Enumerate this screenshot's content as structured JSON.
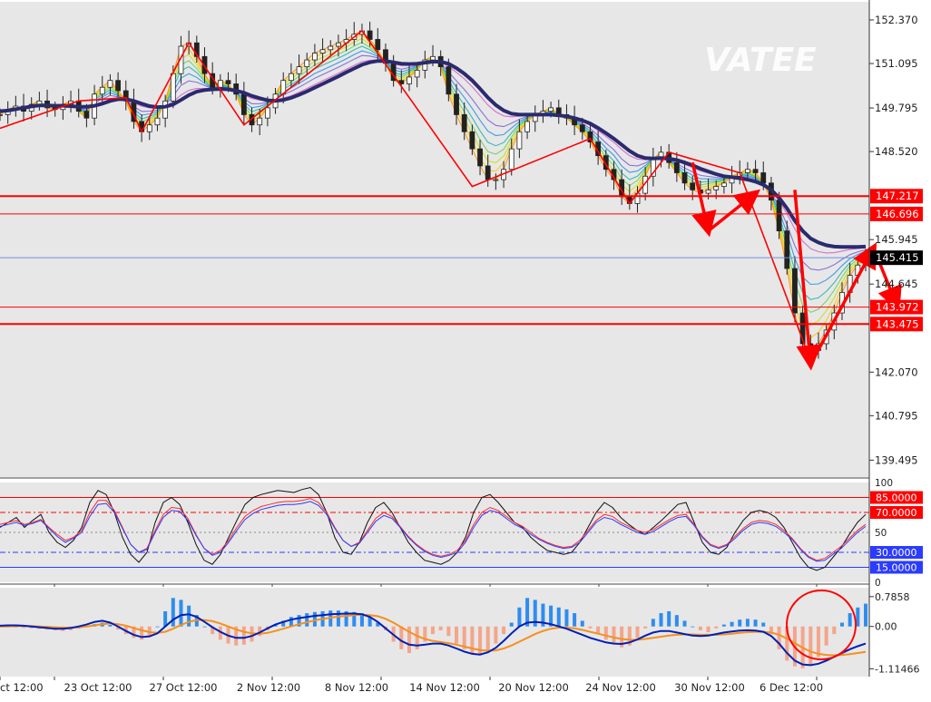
{
  "watermark": "VATEE",
  "colors": {
    "background": "#ffffff",
    "plot_bg": "#e7e7e7",
    "bull_candle": "#333333",
    "bear_candle": "#333333",
    "red_line": "#ff0000",
    "blue_line": "#6a8fe0",
    "navy_ma": "#2a2a6e",
    "macd_up": "#2d8df0",
    "macd_down": "#f4a58a",
    "macd_line": "#001fb4",
    "signal_line": "#f5901f",
    "stoch_main": "#111111",
    "stoch_k": "#ff2a2a",
    "stoch_d": "#2b3bff"
  },
  "chart_data": [
    {
      "type": "candlestick",
      "ylim": [
        139.0,
        152.9
      ],
      "y_ticks": [
        "152.370",
        "151.095",
        "149.795",
        "148.520",
        "145.945",
        "144.645",
        "142.070",
        "140.795",
        "139.495"
      ],
      "x_ticks": [
        "ct 12:00",
        "23 Oct 12:00",
        "27 Oct 12:00",
        "2 Nov 12:00",
        "8 Nov 12:00",
        "14 Nov 12:00",
        "20 Nov 12:00",
        "24 Nov 12:00",
        "30 Nov 12:00",
        "6 Dec 12:00"
      ],
      "horizontal_levels": [
        {
          "label": "147.217",
          "value": 147.217,
          "kind": "red"
        },
        {
          "label": "146.696",
          "value": 146.696,
          "kind": "red"
        },
        {
          "label": "145.415",
          "value": 145.415,
          "kind": "current"
        },
        {
          "label": "143.972",
          "value": 143.972,
          "kind": "red"
        },
        {
          "label": "143.475",
          "value": 143.475,
          "kind": "red"
        }
      ],
      "price_path": [
        149.6,
        149.75,
        149.85,
        149.7,
        149.9,
        150.0,
        149.8,
        149.75,
        149.9,
        150.0,
        149.7,
        149.5,
        150.2,
        150.4,
        150.6,
        150.3,
        150.0,
        149.4,
        149.1,
        149.3,
        149.5,
        150.0,
        150.8,
        151.6,
        151.7,
        151.3,
        150.8,
        150.4,
        150.6,
        150.5,
        150.2,
        149.6,
        149.3,
        149.5,
        149.8,
        150.2,
        150.6,
        150.8,
        151.0,
        151.2,
        151.4,
        151.5,
        151.6,
        151.7,
        151.8,
        151.95,
        152.05,
        151.8,
        151.5,
        151.1,
        150.6,
        150.5,
        150.7,
        150.9,
        151.2,
        151.3,
        151.0,
        150.2,
        149.6,
        149.1,
        148.6,
        148.1,
        147.7,
        147.7,
        148.0,
        148.6,
        149.1,
        149.4,
        149.6,
        149.7,
        149.8,
        149.6,
        149.5,
        149.3,
        149.1,
        148.8,
        148.4,
        148.0,
        147.7,
        147.2,
        147.0,
        147.3,
        147.8,
        148.3,
        148.5,
        148.2,
        147.9,
        147.6,
        147.4,
        147.3,
        147.4,
        147.5,
        147.6,
        147.8,
        147.9,
        148.0,
        147.9,
        147.6,
        147.1,
        146.2,
        145.1,
        143.8,
        142.9,
        142.7,
        142.9,
        143.3,
        143.8,
        144.4,
        144.9,
        145.2,
        145.4
      ],
      "ma_path": [
        149.7,
        149.72,
        149.76,
        149.8,
        149.84,
        149.87,
        149.87,
        149.86,
        149.86,
        149.85,
        149.83,
        149.83,
        149.86,
        149.92,
        150.0,
        150.05,
        150.05,
        150.0,
        149.92,
        149.85,
        149.82,
        149.83,
        149.9,
        150.03,
        150.17,
        150.27,
        150.32,
        150.34,
        150.35,
        150.34,
        150.3,
        150.24,
        150.15,
        150.08,
        150.02,
        150.0,
        150.03,
        150.09,
        150.18,
        150.28,
        150.39,
        150.5,
        150.61,
        150.72,
        150.84,
        150.95,
        151.06,
        151.13,
        151.17,
        151.17,
        151.13,
        151.09,
        151.08,
        151.09,
        151.12,
        151.15,
        151.15,
        151.09,
        150.96,
        150.8,
        150.6,
        150.36,
        150.1,
        149.88,
        149.72,
        149.63,
        149.6,
        149.6,
        149.6,
        149.6,
        149.6,
        149.58,
        149.55,
        149.5,
        149.43,
        149.34,
        149.21,
        149.06,
        148.9,
        148.72,
        148.54,
        148.4,
        148.33,
        148.32,
        148.33,
        148.31,
        148.27,
        148.2,
        148.12,
        148.02,
        147.94,
        147.86,
        147.8,
        147.77,
        147.74,
        147.7,
        147.64,
        147.55,
        147.4,
        147.17,
        146.86,
        146.5,
        146.2,
        145.98,
        145.86,
        145.78,
        145.74,
        145.73,
        145.73,
        145.73,
        145.74
      ],
      "fan_offsets": [
        0.0,
        0.25,
        0.5,
        0.75,
        1.0,
        1.3,
        1.6,
        2.0
      ],
      "fan_colors": [
        "#ff8c00",
        "#ffc300",
        "#c8e000",
        "#6ad04a",
        "#19b4a8",
        "#1f8fe0",
        "#7b5cd6",
        "#d05acc"
      ],
      "zigzag": [
        [
          0,
          149.2
        ],
        [
          10,
          150.0
        ],
        [
          16,
          150.1
        ],
        [
          18,
          149.1
        ],
        [
          24,
          151.7
        ],
        [
          31,
          149.3
        ],
        [
          46,
          152.05
        ],
        [
          60,
          147.5
        ],
        [
          75,
          148.9
        ],
        [
          80,
          147.0
        ],
        [
          85,
          148.5
        ],
        [
          94,
          147.9
        ],
        [
          103,
          142.4
        ]
      ],
      "arrows": [
        {
          "from": [
            88,
            148.2
          ],
          "to": [
            90,
            146.2
          ]
        },
        {
          "from": [
            90,
            146.2
          ],
          "to": [
            96,
            147.3
          ]
        },
        {
          "from": [
            101,
            147.4
          ],
          "to": [
            103,
            142.3
          ]
        },
        {
          "from": [
            103,
            142.3
          ],
          "to": [
            111,
            145.7
          ]
        },
        {
          "from": [
            111,
            145.7
          ],
          "to": [
            114,
            144.0
          ]
        }
      ]
    },
    {
      "type": "line",
      "name": "stochastic",
      "ylim": [
        0,
        100
      ],
      "y_ticks": [
        "100",
        "85.0000",
        "70.0000",
        "50",
        "30.0000",
        "15.0000",
        "0"
      ],
      "levels": [
        {
          "label": "85.0000",
          "value": 85,
          "style": "solid-red"
        },
        {
          "label": "70.0000",
          "value": 70,
          "style": "dash-red"
        },
        {
          "label": "50",
          "value": 50,
          "style": "dot-gray"
        },
        {
          "label": "30.0000",
          "value": 30,
          "style": "dash-blue"
        },
        {
          "label": "15.0000",
          "value": 15,
          "style": "solid-blue"
        }
      ],
      "series": [
        {
          "name": "main",
          "values": [
            55,
            60,
            65,
            55,
            62,
            68,
            50,
            40,
            35,
            42,
            55,
            80,
            92,
            88,
            70,
            45,
            28,
            20,
            30,
            60,
            80,
            85,
            78,
            60,
            38,
            22,
            18,
            28,
            45,
            62,
            78,
            85,
            88,
            90,
            92,
            91,
            90,
            93,
            95,
            88,
            70,
            45,
            30,
            28,
            40,
            60,
            75,
            80,
            70,
            55,
            40,
            30,
            22,
            20,
            18,
            22,
            30,
            45,
            70,
            85,
            88,
            80,
            70,
            60,
            55,
            45,
            38,
            32,
            30,
            28,
            30,
            40,
            55,
            70,
            80,
            75,
            65,
            58,
            52,
            48,
            55,
            62,
            70,
            78,
            80,
            60,
            40,
            30,
            28,
            35,
            50,
            62,
            70,
            72,
            70,
            65,
            55,
            40,
            25,
            15,
            12,
            15,
            25,
            35,
            48,
            60,
            68
          ]
        },
        {
          "name": "k",
          "values": [
            58,
            60,
            62,
            58,
            60,
            63,
            55,
            48,
            42,
            45,
            52,
            70,
            82,
            82,
            72,
            55,
            38,
            30,
            34,
            52,
            68,
            75,
            74,
            64,
            48,
            34,
            28,
            32,
            42,
            55,
            66,
            72,
            76,
            78,
            80,
            81,
            81,
            82,
            84,
            80,
            70,
            55,
            42,
            36,
            40,
            52,
            64,
            70,
            66,
            56,
            46,
            38,
            32,
            28,
            26,
            28,
            32,
            42,
            58,
            70,
            75,
            72,
            66,
            60,
            56,
            50,
            44,
            40,
            37,
            35,
            36,
            42,
            52,
            62,
            68,
            66,
            60,
            56,
            52,
            50,
            53,
            58,
            63,
            67,
            68,
            58,
            46,
            38,
            35,
            38,
            46,
            54,
            60,
            62,
            61,
            58,
            52,
            44,
            34,
            26,
            22,
            24,
            30,
            36,
            44,
            52,
            58
          ]
        },
        {
          "name": "d",
          "values": [
            56,
            58,
            60,
            57,
            59,
            62,
            54,
            46,
            40,
            44,
            50,
            66,
            78,
            79,
            70,
            54,
            38,
            30,
            33,
            50,
            65,
            72,
            71,
            62,
            47,
            34,
            27,
            30,
            40,
            52,
            63,
            69,
            73,
            75,
            77,
            78,
            78,
            79,
            81,
            77,
            68,
            54,
            42,
            36,
            39,
            50,
            61,
            67,
            64,
            55,
            45,
            37,
            31,
            27,
            25,
            27,
            30,
            40,
            55,
            67,
            72,
            70,
            64,
            58,
            54,
            48,
            43,
            39,
            36,
            34,
            35,
            40,
            50,
            60,
            65,
            63,
            58,
            54,
            50,
            48,
            51,
            56,
            61,
            65,
            66,
            57,
            45,
            37,
            34,
            37,
            44,
            52,
            58,
            60,
            59,
            56,
            50,
            43,
            33,
            25,
            21,
            22,
            28,
            34,
            42,
            50,
            56
          ]
        }
      ]
    },
    {
      "type": "bar",
      "name": "macd",
      "ylim": [
        -1.32,
        1.02
      ],
      "y_ticks": [
        "0.7858",
        "0.00",
        "-1.11466"
      ],
      "histogram": [
        -0.02,
        -0.02,
        -0.03,
        -0.04,
        -0.05,
        -0.06,
        -0.08,
        -0.1,
        -0.12,
        -0.1,
        -0.06,
        0.0,
        0.06,
        0.1,
        0.04,
        -0.08,
        -0.2,
        -0.3,
        -0.35,
        -0.25,
        0.0,
        0.4,
        0.75,
        0.7,
        0.55,
        0.3,
        0.0,
        -0.2,
        -0.35,
        -0.45,
        -0.5,
        -0.48,
        -0.4,
        -0.25,
        -0.1,
        0.05,
        0.15,
        0.25,
        0.3,
        0.35,
        0.38,
        0.4,
        0.42,
        0.42,
        0.4,
        0.38,
        0.35,
        0.25,
        0.1,
        -0.1,
        -0.4,
        -0.6,
        -0.7,
        -0.6,
        -0.4,
        -0.2,
        -0.1,
        -0.25,
        -0.45,
        -0.6,
        -0.7,
        -0.75,
        -0.65,
        -0.45,
        -0.2,
        0.1,
        0.5,
        0.75,
        0.7,
        0.6,
        0.55,
        0.5,
        0.45,
        0.35,
        0.15,
        -0.05,
        -0.2,
        -0.35,
        -0.45,
        -0.55,
        -0.5,
        -0.3,
        -0.05,
        0.2,
        0.35,
        0.4,
        0.3,
        0.15,
        0.0,
        -0.1,
        -0.15,
        -0.05,
        0.05,
        0.12,
        0.18,
        0.2,
        0.18,
        0.1,
        -0.2,
        -0.6,
        -0.9,
        -1.05,
        -1.1,
        -1.0,
        -0.8,
        -0.5,
        -0.2,
        0.1,
        0.35,
        0.5,
        0.6
      ],
      "macd_line": [
        0.02,
        0.03,
        0.03,
        0.02,
        0.0,
        -0.02,
        -0.04,
        -0.06,
        -0.06,
        -0.04,
        0.0,
        0.05,
        0.12,
        0.15,
        0.1,
        0.0,
        -0.12,
        -0.22,
        -0.28,
        -0.26,
        -0.18,
        0.0,
        0.18,
        0.3,
        0.32,
        0.25,
        0.12,
        -0.02,
        -0.14,
        -0.24,
        -0.3,
        -0.3,
        -0.25,
        -0.16,
        -0.05,
        0.05,
        0.12,
        0.18,
        0.22,
        0.25,
        0.28,
        0.3,
        0.32,
        0.33,
        0.34,
        0.34,
        0.32,
        0.25,
        0.12,
        -0.05,
        -0.22,
        -0.38,
        -0.48,
        -0.5,
        -0.48,
        -0.45,
        -0.45,
        -0.5,
        -0.58,
        -0.66,
        -0.72,
        -0.74,
        -0.68,
        -0.56,
        -0.38,
        -0.18,
        0.0,
        0.1,
        0.12,
        0.1,
        0.06,
        0.0,
        -0.06,
        -0.14,
        -0.22,
        -0.3,
        -0.36,
        -0.42,
        -0.45,
        -0.46,
        -0.42,
        -0.34,
        -0.24,
        -0.16,
        -0.12,
        -0.12,
        -0.16,
        -0.2,
        -0.24,
        -0.25,
        -0.24,
        -0.2,
        -0.16,
        -0.13,
        -0.11,
        -0.1,
        -0.11,
        -0.14,
        -0.25,
        -0.45,
        -0.7,
        -0.9,
        -1.0,
        -1.02,
        -0.98,
        -0.9,
        -0.8,
        -0.7,
        -0.6,
        -0.52,
        -0.45
      ],
      "signal_line": [
        0.0,
        0.0,
        0.01,
        0.01,
        0.01,
        0.0,
        -0.01,
        -0.02,
        -0.03,
        -0.03,
        -0.02,
        0.0,
        0.03,
        0.06,
        0.08,
        0.06,
        0.02,
        -0.04,
        -0.1,
        -0.15,
        -0.17,
        -0.14,
        -0.06,
        0.04,
        0.12,
        0.17,
        0.17,
        0.14,
        0.08,
        0.0,
        -0.08,
        -0.14,
        -0.18,
        -0.19,
        -0.17,
        -0.12,
        -0.06,
        0.0,
        0.06,
        0.11,
        0.16,
        0.2,
        0.23,
        0.26,
        0.28,
        0.3,
        0.31,
        0.3,
        0.27,
        0.2,
        0.1,
        -0.02,
        -0.14,
        -0.25,
        -0.33,
        -0.38,
        -0.41,
        -0.44,
        -0.48,
        -0.53,
        -0.58,
        -0.62,
        -0.64,
        -0.63,
        -0.58,
        -0.5,
        -0.4,
        -0.3,
        -0.2,
        -0.12,
        -0.06,
        -0.03,
        -0.03,
        -0.05,
        -0.09,
        -0.14,
        -0.19,
        -0.24,
        -0.29,
        -0.33,
        -0.35,
        -0.35,
        -0.33,
        -0.3,
        -0.27,
        -0.24,
        -0.22,
        -0.21,
        -0.21,
        -0.22,
        -0.22,
        -0.22,
        -0.21,
        -0.19,
        -0.17,
        -0.15,
        -0.14,
        -0.14,
        -0.16,
        -0.22,
        -0.32,
        -0.44,
        -0.56,
        -0.66,
        -0.72,
        -0.75,
        -0.76,
        -0.75,
        -0.73,
        -0.7,
        -0.67
      ]
    }
  ]
}
